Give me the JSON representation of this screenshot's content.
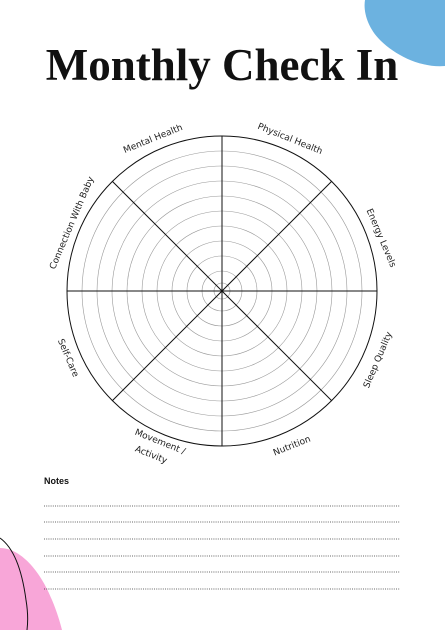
{
  "title": "Monthly Check In",
  "wheel": {
    "labels": [
      "Mental Health",
      "Physical Health",
      "Energy Levels",
      "Sleep Quality",
      "Nutrition",
      [
        "Movement /",
        "Activity"
      ],
      "Self-Care",
      "Connection With Baby"
    ]
  },
  "notes": {
    "label": "Notes"
  }
}
